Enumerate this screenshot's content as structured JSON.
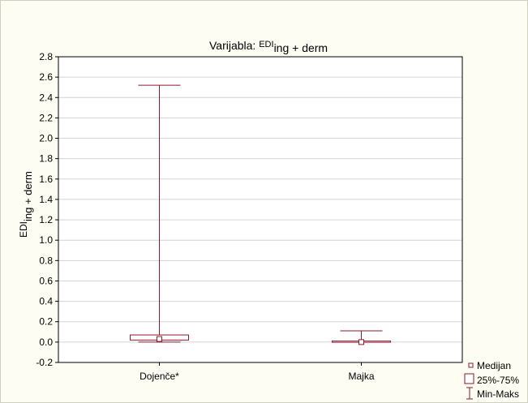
{
  "chart_data": {
    "type": "boxplot",
    "title_main": "Varijabla: ",
    "title_var": "EDI",
    "title_sub": "ing + derm",
    "ylabel_main": "EDI",
    "ylabel_sub": "ing + derm",
    "ylim": [
      -0.2,
      2.8
    ],
    "yticks": [
      -0.2,
      0.0,
      0.2,
      0.4,
      0.6,
      0.8,
      1.0,
      1.2,
      1.4,
      1.6,
      1.8,
      2.0,
      2.2,
      2.4,
      2.6,
      2.8
    ],
    "ytick_labels": [
      "-0.2",
      "0.0",
      "0.2",
      "0.4",
      "0.6",
      "0.8",
      "1.0",
      "1.2",
      "1.4",
      "1.6",
      "1.8",
      "2.0",
      "2.2",
      "2.4",
      "2.6",
      "2.8"
    ],
    "grid": true,
    "categories": [
      "Dojenče*",
      "Majka"
    ],
    "boxes": [
      {
        "category": "Dojenče*",
        "median": 0.03,
        "q1": 0.02,
        "q3": 0.07,
        "min": 0.0,
        "max": 2.52
      },
      {
        "category": "Majka",
        "median": 0.0,
        "q1": 0.0,
        "q3": 0.01,
        "min": 0.0,
        "max": 0.11
      }
    ],
    "legend": {
      "placement": "bottom-right",
      "items": [
        "Medijan",
        "25%-75%",
        "Min-Maks"
      ]
    },
    "colors": {
      "box": "#8b1a2e",
      "grid": "#d3d3d3",
      "frame_bg": "#fdfdf3"
    }
  }
}
